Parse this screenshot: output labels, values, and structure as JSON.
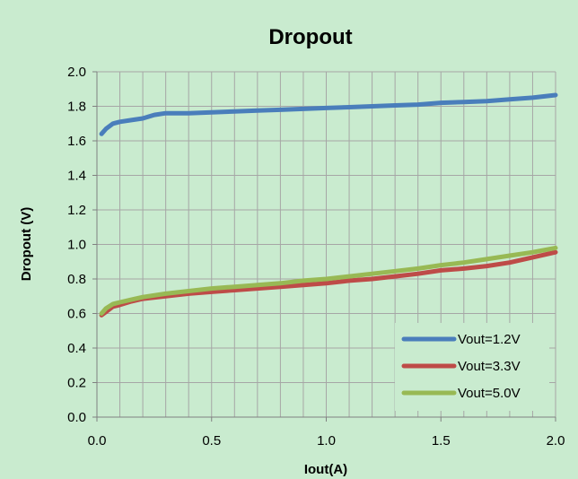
{
  "chart_data": {
    "type": "line",
    "title": "Dropout",
    "xlabel": "Iout(A)",
    "ylabel": "Dropout (V)",
    "xlim": [
      0,
      2.0
    ],
    "ylim": [
      0,
      2.0
    ],
    "x_ticks": [
      "0.0",
      "0.5",
      "1.0",
      "1.5",
      "2.0"
    ],
    "y_ticks": [
      "0.0",
      "0.2",
      "0.4",
      "0.6",
      "0.8",
      "1.0",
      "1.2",
      "1.4",
      "1.6",
      "1.8",
      "2.0"
    ],
    "grid": true,
    "legend_position": "bottom-right",
    "background_color": "#c9ebcf",
    "series": [
      {
        "name": "Vout=1.2V",
        "color": "#4a7ebb",
        "x": [
          0.02,
          0.04,
          0.07,
          0.1,
          0.15,
          0.2,
          0.25,
          0.3,
          0.4,
          0.5,
          0.6,
          0.7,
          0.8,
          0.9,
          1.0,
          1.1,
          1.2,
          1.3,
          1.4,
          1.5,
          1.6,
          1.7,
          1.8,
          1.9,
          2.0
        ],
        "values": [
          1.64,
          1.67,
          1.7,
          1.71,
          1.72,
          1.73,
          1.75,
          1.76,
          1.76,
          1.765,
          1.77,
          1.775,
          1.78,
          1.785,
          1.79,
          1.795,
          1.8,
          1.805,
          1.81,
          1.82,
          1.825,
          1.83,
          1.84,
          1.85,
          1.865
        ]
      },
      {
        "name": "Vout=3.3V",
        "color": "#be4b48",
        "x": [
          0.02,
          0.04,
          0.07,
          0.1,
          0.15,
          0.2,
          0.3,
          0.4,
          0.5,
          0.6,
          0.7,
          0.8,
          0.9,
          1.0,
          1.1,
          1.2,
          1.3,
          1.4,
          1.5,
          1.6,
          1.7,
          1.8,
          1.9,
          2.0
        ],
        "values": [
          0.59,
          0.61,
          0.64,
          0.65,
          0.67,
          0.685,
          0.7,
          0.715,
          0.725,
          0.735,
          0.745,
          0.755,
          0.765,
          0.775,
          0.79,
          0.8,
          0.815,
          0.83,
          0.85,
          0.86,
          0.875,
          0.895,
          0.925,
          0.955
        ]
      },
      {
        "name": "Vout=5.0V",
        "color": "#98b954",
        "x": [
          0.02,
          0.04,
          0.07,
          0.1,
          0.15,
          0.2,
          0.3,
          0.4,
          0.5,
          0.6,
          0.7,
          0.8,
          0.9,
          1.0,
          1.1,
          1.2,
          1.3,
          1.4,
          1.5,
          1.6,
          1.7,
          1.8,
          1.9,
          2.0
        ],
        "values": [
          0.6,
          0.63,
          0.655,
          0.665,
          0.68,
          0.695,
          0.715,
          0.73,
          0.745,
          0.755,
          0.765,
          0.775,
          0.79,
          0.8,
          0.815,
          0.83,
          0.845,
          0.86,
          0.88,
          0.895,
          0.915,
          0.935,
          0.955,
          0.98
        ]
      }
    ]
  }
}
